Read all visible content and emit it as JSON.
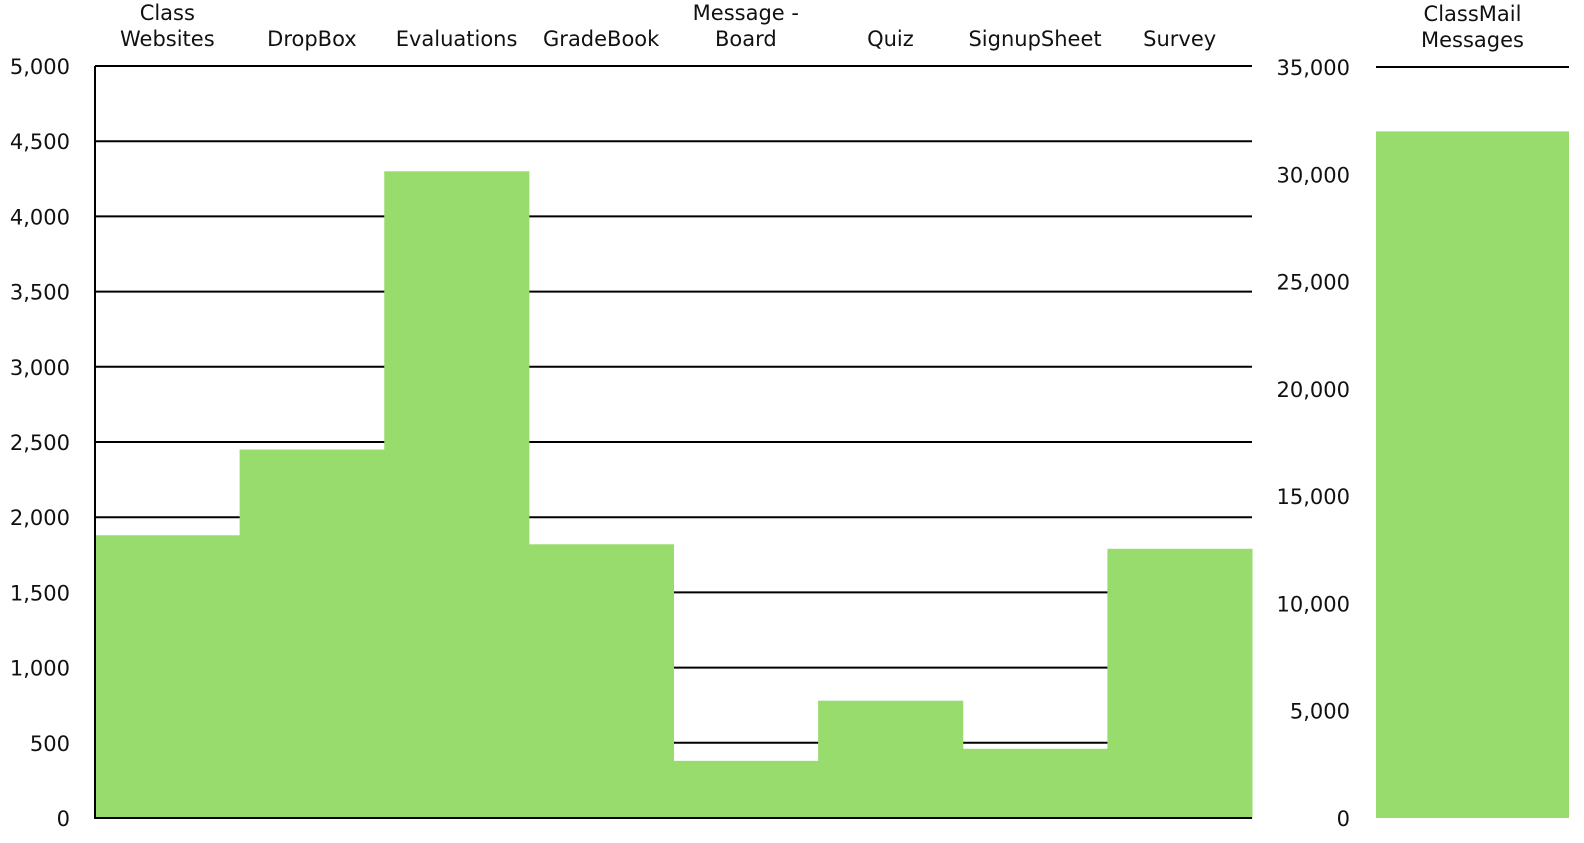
{
  "chart_data": [
    {
      "type": "bar",
      "categories": [
        [
          "Class",
          "Websites"
        ],
        [
          "DropBox"
        ],
        [
          "Evaluations"
        ],
        [
          "GradeBook"
        ],
        [
          "Message -",
          "Board"
        ],
        [
          "Quiz"
        ],
        [
          "SignupSheet"
        ],
        [
          "Survey"
        ]
      ],
      "values": [
        1880,
        2450,
        4300,
        1820,
        380,
        780,
        460,
        1790
      ],
      "ylim": [
        0,
        5000
      ],
      "yticks": [
        "0",
        "500",
        "1,000",
        "1,500",
        "2,000",
        "2,500",
        "3,000",
        "3,500",
        "4,000",
        "4,500",
        "5,000"
      ],
      "ytick_values": [
        0,
        500,
        1000,
        1500,
        2000,
        2500,
        3000,
        3500,
        4000,
        4500,
        5000
      ],
      "grid": true,
      "bar_color": "#99dc6e"
    },
    {
      "type": "bar",
      "categories": [
        [
          "ClassMail",
          "Messages"
        ]
      ],
      "values": [
        32000
      ],
      "ylim": [
        0,
        35000
      ],
      "yticks": [
        "0",
        "5,000",
        "10,000",
        "15,000",
        "20,000",
        "25,000",
        "30,000",
        "35,000"
      ],
      "ytick_values": [
        0,
        5000,
        10000,
        15000,
        20000,
        25000,
        30000,
        35000
      ],
      "grid": true,
      "bar_color": "#99dc6e"
    }
  ]
}
